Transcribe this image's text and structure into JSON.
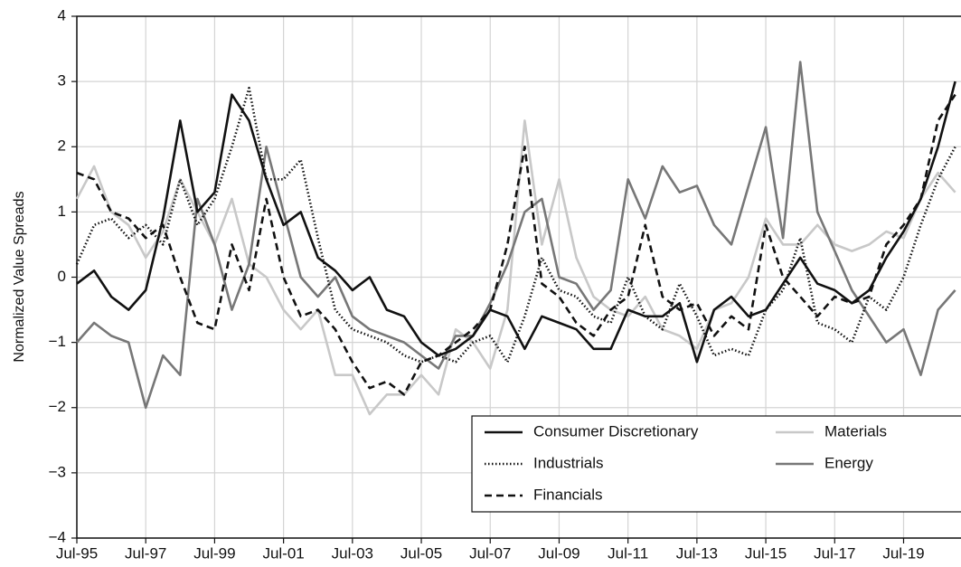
{
  "chart_data": {
    "type": "line",
    "y_label": "Normalized Value Spreads",
    "x": [
      "1995-07",
      "1996-01",
      "1996-07",
      "1997-01",
      "1997-07",
      "1998-01",
      "1998-07",
      "1999-01",
      "1999-07",
      "2000-01",
      "2000-07",
      "2001-01",
      "2001-07",
      "2002-01",
      "2002-07",
      "2003-01",
      "2003-07",
      "2004-01",
      "2004-07",
      "2005-01",
      "2005-07",
      "2006-01",
      "2006-07",
      "2007-01",
      "2007-07",
      "2008-01",
      "2008-07",
      "2009-01",
      "2009-07",
      "2010-01",
      "2010-07",
      "2011-01",
      "2011-07",
      "2012-01",
      "2012-07",
      "2013-01",
      "2013-07",
      "2014-01",
      "2014-07",
      "2015-01",
      "2015-07",
      "2016-01",
      "2016-07",
      "2017-01",
      "2017-07",
      "2018-01",
      "2018-07",
      "2019-01",
      "2019-07",
      "2020-01",
      "2020-07",
      "2021-01"
    ],
    "xlim": [
      "1995-07",
      "2021-03"
    ],
    "xticks": [
      {
        "value": "1995-07",
        "label": "Jul-95"
      },
      {
        "value": "1997-07",
        "label": "Jul-97"
      },
      {
        "value": "1999-07",
        "label": "Jul-99"
      },
      {
        "value": "2001-07",
        "label": "Jul-01"
      },
      {
        "value": "2003-07",
        "label": "Jul-03"
      },
      {
        "value": "2005-07",
        "label": "Jul-05"
      },
      {
        "value": "2007-07",
        "label": "Jul-07"
      },
      {
        "value": "2009-07",
        "label": "Jul-09"
      },
      {
        "value": "2011-07",
        "label": "Jul-11"
      },
      {
        "value": "2013-07",
        "label": "Jul-13"
      },
      {
        "value": "2015-07",
        "label": "Jul-15"
      },
      {
        "value": "2017-07",
        "label": "Jul-17"
      },
      {
        "value": "2019-07",
        "label": "Jul-19"
      }
    ],
    "ylim": [
      -4,
      4
    ],
    "yticks": [
      {
        "value": -4,
        "label": "−4"
      },
      {
        "value": -3,
        "label": "−3"
      },
      {
        "value": -2,
        "label": "−2"
      },
      {
        "value": -1,
        "label": "−1"
      },
      0,
      1,
      2,
      3,
      4
    ],
    "grid": true,
    "legend": "lower right",
    "series": [
      {
        "name": "Consumer Discretionary",
        "color": "#111111",
        "dash": "solid",
        "values": [
          -0.1,
          0.1,
          -0.3,
          -0.5,
          -0.2,
          0.9,
          2.4,
          1.0,
          1.3,
          2.8,
          2.4,
          1.5,
          0.8,
          1.0,
          0.3,
          0.1,
          -0.2,
          0.0,
          -0.5,
          -0.6,
          -1.0,
          -1.2,
          -1.1,
          -0.9,
          -0.5,
          -0.6,
          -1.1,
          -0.6,
          -0.7,
          -0.8,
          -1.1,
          -1.1,
          -0.5,
          -0.6,
          -0.6,
          -0.4,
          -1.3,
          -0.5,
          -0.3,
          -0.6,
          -0.5,
          -0.1,
          0.3,
          -0.1,
          -0.2,
          -0.4,
          -0.2,
          0.3,
          0.7,
          1.2,
          2.0,
          3.0
        ]
      },
      {
        "name": "Industrials",
        "color": "#111111",
        "dash": "dotted",
        "values": [
          0.2,
          0.8,
          0.9,
          0.6,
          0.8,
          0.5,
          1.5,
          0.8,
          1.2,
          2.0,
          2.9,
          1.5,
          1.5,
          1.8,
          0.6,
          -0.5,
          -0.8,
          -0.9,
          -1.0,
          -1.2,
          -1.3,
          -1.2,
          -1.3,
          -1.0,
          -0.9,
          -1.3,
          -0.6,
          0.3,
          -0.2,
          -0.3,
          -0.6,
          -0.7,
          0.0,
          -0.6,
          -0.8,
          -0.1,
          -0.6,
          -1.2,
          -1.1,
          -1.2,
          -0.5,
          -0.2,
          0.6,
          -0.7,
          -0.8,
          -1.0,
          -0.3,
          -0.5,
          0.0,
          0.8,
          1.5,
          2.0
        ]
      },
      {
        "name": "Financials",
        "color": "#111111",
        "dash": "dashed",
        "values": [
          1.6,
          1.5,
          1.0,
          0.9,
          0.6,
          0.8,
          0.0,
          -0.7,
          -0.8,
          0.5,
          -0.2,
          1.2,
          0.0,
          -0.6,
          -0.5,
          -0.8,
          -1.3,
          -1.7,
          -1.6,
          -1.8,
          -1.3,
          -1.2,
          -1.0,
          -0.8,
          -0.5,
          0.5,
          2.0,
          -0.1,
          -0.3,
          -0.7,
          -0.9,
          -0.5,
          -0.3,
          0.8,
          -0.3,
          -0.5,
          -0.4,
          -0.9,
          -0.6,
          -0.8,
          0.8,
          0.0,
          -0.3,
          -0.6,
          -0.3,
          -0.4,
          -0.3,
          0.5,
          0.8,
          1.2,
          2.4,
          2.8
        ]
      },
      {
        "name": "Materials",
        "color": "#c8c8c8",
        "dash": "solid",
        "values": [
          1.2,
          1.7,
          1.0,
          0.8,
          0.3,
          0.7,
          1.5,
          1.0,
          0.5,
          1.2,
          0.2,
          0.0,
          -0.5,
          -0.8,
          -0.5,
          -1.5,
          -1.5,
          -2.1,
          -1.8,
          -1.8,
          -1.5,
          -1.8,
          -0.8,
          -1.0,
          -1.4,
          -0.5,
          2.4,
          0.5,
          1.5,
          0.3,
          -0.3,
          -0.5,
          -0.6,
          -0.3,
          -0.8,
          -0.9,
          -1.1,
          -0.5,
          -0.4,
          0.0,
          0.9,
          0.5,
          0.5,
          0.8,
          0.5,
          0.4,
          0.5,
          0.7,
          0.6,
          1.2,
          1.6,
          1.3
        ]
      },
      {
        "name": "Energy",
        "color": "#777777",
        "dash": "solid",
        "values": [
          -1.0,
          -0.7,
          -0.9,
          -1.0,
          -2.0,
          -1.2,
          -1.5,
          1.2,
          0.5,
          -0.5,
          0.2,
          2.0,
          1.0,
          0.0,
          -0.3,
          0.0,
          -0.6,
          -0.8,
          -0.9,
          -1.0,
          -1.2,
          -1.4,
          -0.9,
          -0.9,
          -0.4,
          0.2,
          1.0,
          1.2,
          0.0,
          -0.1,
          -0.5,
          -0.2,
          1.5,
          0.9,
          1.7,
          1.3,
          1.4,
          0.8,
          0.5,
          1.4,
          2.3,
          0.6,
          3.3,
          1.0,
          0.4,
          -0.2,
          -0.6,
          -1.0,
          -0.8,
          -1.5,
          -0.5,
          -0.2
        ]
      }
    ]
  }
}
